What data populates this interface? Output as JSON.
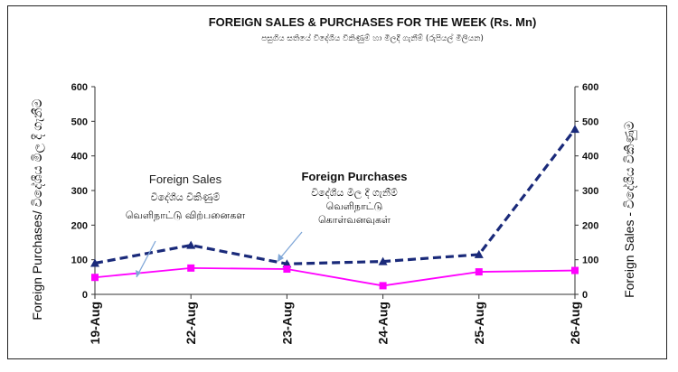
{
  "chart_data": {
    "type": "line",
    "title": "FOREIGN SALES & PURCHASES FOR THE WEEK (Rs. Mn)",
    "subtitle": "පසුගිය සතියේ විදේශීය විකිණුම් හා මිලදී ගැනීම් (රුපියල් මිලියන)",
    "categories": [
      "19-Aug",
      "22-Aug",
      "23-Aug",
      "24-Aug",
      "25-Aug",
      "26-Aug"
    ],
    "ylim": [
      0,
      600
    ],
    "yticks": [
      0,
      100,
      200,
      300,
      400,
      500,
      600
    ],
    "ylabel_left": "Foreign Purchases/ විදේශීය මිල දී ගැනීම",
    "ylabel_right": "Foreign Sales - විදේශීය විකිණුම",
    "series": [
      {
        "name": "Foreign Purchases",
        "values": [
          90,
          142,
          88,
          95,
          115,
          477
        ],
        "color": "#1a2a7a",
        "style": "dashed",
        "marker": "triangle"
      },
      {
        "name": "Foreign Sales",
        "values": [
          49,
          76,
          73,
          25,
          65,
          69
        ],
        "color": "#ff00ff",
        "style": "solid",
        "marker": "square"
      }
    ],
    "annotations": {
      "sales": {
        "lines": [
          "Foreign Sales",
          "විදේශීය විකිණුම්",
          "வெளிநாட்டு விற்பனைகள"
        ]
      },
      "purchases": {
        "lines": [
          "Foreign Purchases",
          "විදේශීය මිල දී ගැනීම්",
          "வெளிநாட்டு",
          "கொள்வனவுகள்"
        ]
      }
    },
    "grid": false,
    "legend": "none"
  }
}
